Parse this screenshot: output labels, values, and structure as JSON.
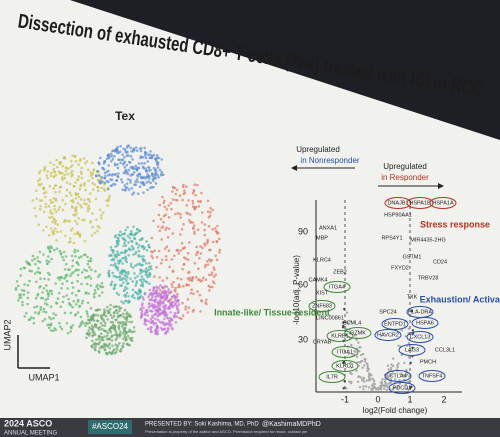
{
  "slide": {
    "title": "Dissection of exhausted CD8+ T cells (Tex) treated with ICI in RCC",
    "umap": {
      "label": "Tex",
      "y_axis": "UMAP2",
      "x_axis": "UMAP1"
    },
    "volcano": {
      "left_header": [
        "Upregulated",
        "in Nonresponder"
      ],
      "right_header": [
        "Upregulated",
        "in Responder"
      ],
      "y_axis": "-log10(adj. P-value)",
      "x_axis": "log2(Fold change)",
      "yticks": [
        "90",
        "60",
        "30"
      ],
      "xticks": [
        "-1",
        "0",
        "1",
        "2"
      ],
      "groups": {
        "stress": "Stress response",
        "innate": "Innate-like/ Tissue-resident",
        "exhaustion": "Exhaustion/ Activation"
      },
      "genes": [
        "DNAJB1",
        "HSPA1B",
        "HSPA1A",
        "HSP90AA1",
        "RPS4Y1",
        "MIR4435-2HG",
        "GSTM1",
        "CD24",
        "FXYD2",
        "TRBV28",
        "TXK",
        "SPC24",
        "HLA-DRA",
        "ENTPD1",
        "HAVCR2",
        "HSPA6",
        "CXCL13",
        "LAG3",
        "CCL3L1",
        "PMCH",
        "TNFSF4",
        "CTLA4",
        "PDCD1",
        "ANXA1",
        "MBP",
        "KLRC4",
        "ZEB2",
        "CAMK4",
        "ITGA4",
        "XIST",
        "ZNF683",
        "LINC00861",
        "SCML4",
        "KLRB1",
        "CRYAB",
        "ITGA1",
        "KLRD1",
        "IL7R",
        "GZMK"
      ]
    },
    "footer": {
      "meeting": "2024 ASCO",
      "meeting_sub": "ANNUAL MEETING",
      "hashtag": "#ASCO24",
      "presenter": "PRESENTED BY: Soki Kashima, MD, PhD",
      "handle": "@KashimaMDPhD",
      "disclaimer": "Presentation is property of the author and ASCO. Permission required for reuse; contact per"
    }
  }
}
